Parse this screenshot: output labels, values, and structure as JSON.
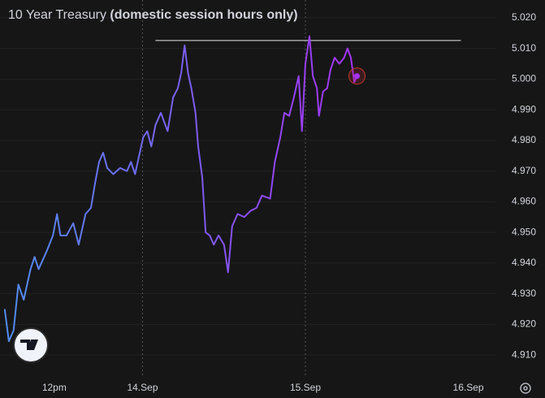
{
  "chart_data": {
    "type": "line",
    "title": "10 Year Treasury",
    "title_note": "(domestic session hours only)",
    "x": [
      3.7,
      4.3,
      5.0,
      5.7,
      6.5,
      7.5,
      8.1,
      8.7,
      9.9,
      10.8,
      11.4,
      11.9,
      12.8,
      13.8,
      14.6,
      15.6,
      16.4,
      17.0,
      17.6,
      18.2,
      18.8,
      19.7,
      20.7,
      21.7,
      22.3,
      22.9,
      23.5,
      24.1,
      24.7,
      25.3,
      25.9,
      26.7,
      27.7,
      28.5,
      29.2,
      29.7,
      30.2,
      30.7,
      31.2,
      31.8,
      32.2,
      32.8,
      33.3,
      33.9,
      34.5,
      35.2,
      36.0,
      36.6,
      37.2,
      38.0,
      39.0,
      39.9,
      40.8,
      41.6,
      42.8,
      43.5,
      44.3,
      44.9,
      45.6,
      46.3,
      47.0,
      47.5,
      48.0,
      48.6,
      49.1,
      49.7,
      50.0,
      50.6,
      51.2,
      51.7,
      52.3,
      53.0,
      53.7,
      54.2,
      54.7,
      55.2,
      55.6
    ],
    "series": [
      {
        "colors": [
          "#4f8ef0",
          "#a532f5"
        ],
        "values": [
          4.925,
          4.9145,
          4.918,
          4.933,
          4.928,
          4.938,
          4.942,
          4.938,
          4.944,
          4.949,
          4.956,
          4.949,
          4.949,
          4.953,
          4.946,
          4.956,
          4.958,
          4.966,
          4.973,
          4.976,
          4.971,
          4.969,
          4.971,
          4.97,
          4.973,
          4.969,
          4.975,
          4.981,
          4.983,
          4.978,
          4.985,
          4.989,
          4.983,
          4.994,
          4.997,
          5.002,
          5.011,
          5.002,
          4.997,
          4.989,
          4.978,
          4.968,
          4.95,
          4.949,
          4.946,
          4.949,
          4.946,
          4.937,
          4.952,
          4.956,
          4.955,
          4.957,
          4.958,
          4.962,
          4.961,
          4.973,
          4.981,
          4.989,
          4.988,
          4.994,
          5.001,
          4.983,
          5.005,
          5.014,
          5.001,
          4.997,
          4.988,
          4.996,
          4.997,
          5.003,
          5.007,
          5.005,
          5.007,
          5.01,
          5.007,
          4.999,
          5.001
        ]
      }
    ],
    "hline": {
      "value": 5.0126,
      "x": [
        25.9,
        70.9
      ]
    },
    "day_separators": [
      24,
      48
    ],
    "xlim": [
      3,
      76
    ],
    "xticks": [
      {
        "value": 11,
        "label": "12pm"
      },
      {
        "value": 24,
        "label": "14.Sep"
      },
      {
        "value": 48,
        "label": "15.Sep"
      },
      {
        "value": 72,
        "label": "16.Sep"
      }
    ],
    "ylim": [
      4.9034,
      5.0258
    ],
    "yticks": [
      {
        "value": 4.91,
        "label": "4.910"
      },
      {
        "value": 4.92,
        "label": "4.920"
      },
      {
        "value": 4.93,
        "label": "4.930"
      },
      {
        "value": 4.94,
        "label": "4.940"
      },
      {
        "value": 4.95,
        "label": "4.950"
      },
      {
        "value": 4.96,
        "label": "4.960"
      },
      {
        "value": 4.97,
        "label": "4.970"
      },
      {
        "value": 4.98,
        "label": "4.980"
      },
      {
        "value": 4.99,
        "label": "4.990"
      },
      {
        "value": 5.0,
        "label": "5.000"
      },
      {
        "value": 5.01,
        "label": "5.010"
      },
      {
        "value": 5.02,
        "label": "5.020"
      }
    ],
    "grid": true
  }
}
